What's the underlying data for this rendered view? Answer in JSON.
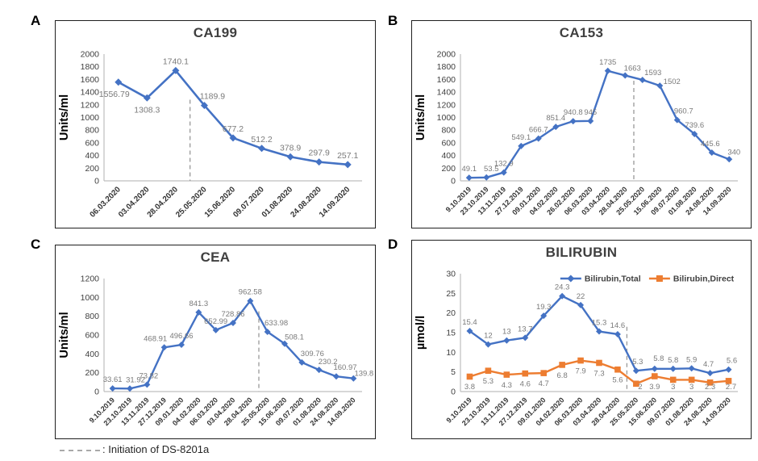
{
  "figure": {
    "panel_letters": [
      "A",
      "B",
      "C",
      "D"
    ],
    "caption": {
      "label": ": Initiation of DS-8201a"
    },
    "colors": {
      "series_blue": "#4472C4",
      "series_orange": "#ED7D31",
      "data_label": "#7a7a7a",
      "dashed_line": "#999999",
      "axis_line": "#bfbfbf",
      "tick_text": "#404040",
      "date_text": "#333333",
      "title_text": "#3f3f3f"
    }
  },
  "chart_data": [
    {
      "panel": "A",
      "type": "line",
      "title": "CA199",
      "ylabel": "Units/ml",
      "ylim": [
        0,
        2000
      ],
      "ytick_step": 200,
      "grid": false,
      "categories": [
        "06.03.2020",
        "03.04.2020",
        "28.04.2020",
        "25.05.2020",
        "15.06.2020",
        "09.07.2020",
        "01.08.2020",
        "24.08.2020",
        "14.09.2020"
      ],
      "series": [
        {
          "name": "CA199",
          "color": "#4472C4",
          "marker": "diamond",
          "values": [
            1556.79,
            1308.3,
            1740.1,
            1189.9,
            677.2,
            512.2,
            378.9,
            297.9,
            257.1
          ],
          "labels": [
            "1556.79",
            "1308.3",
            "1740.1",
            "1189.9",
            "677.2",
            "512.2",
            "378.9",
            "297.9",
            "257.1"
          ],
          "label_side": "above",
          "label_side_overrides": {
            "0": "below",
            "1": "below"
          },
          "label_dx": {
            "0": -5,
            "3": 10
          },
          "label_dy": {
            "0": 2,
            "1": 2
          }
        }
      ],
      "dashed_line": {
        "between_indices": [
          2,
          3
        ],
        "top_frac": 0.36
      },
      "legend": {
        "show": false
      }
    },
    {
      "panel": "B",
      "type": "line",
      "title": "CA153",
      "ylabel": "Units/ml",
      "ylim": [
        0,
        2000
      ],
      "ytick_step": 200,
      "grid": false,
      "categories": [
        "9.10.2019",
        "23.10.2019",
        "13.11.2019",
        "27.12.2019",
        "09.01.2020",
        "04.02.2020",
        "26.02.2020",
        "06.03.2020",
        "03.04.2020",
        "28.04.2020",
        "25.05.2020",
        "15.06.2020",
        "09.07.2020",
        "01.08.2020",
        "24.08.2020",
        "14.09.2020"
      ],
      "series": [
        {
          "name": "CA153",
          "color": "#4472C4",
          "marker": "diamond",
          "values": [
            49.1,
            53.5,
            132.9,
            549.1,
            666.7,
            851.4,
            940.8,
            945,
            1735,
            1663,
            1593,
            1502,
            960.7,
            739.6,
            445.6,
            340
          ],
          "labels": [
            "49.1",
            "53.5",
            "132.9",
            "549.1",
            "666.7",
            "851.4",
            "940.8",
            "945",
            "1735",
            "1663",
            "1593",
            "1502",
            "960.7",
            "739.6",
            "445.6",
            "340"
          ],
          "label_side": "above",
          "label_side_overrides": {},
          "label_dx": {
            "1": 6,
            "9": 9,
            "10": 13,
            "11": 15,
            "12": 8,
            "14": -2,
            "15": 6
          },
          "label_dy": {
            "9": 2,
            "10": 2,
            "11": 6,
            "15": 2
          }
        }
      ],
      "dashed_line": {
        "between_indices": [
          9,
          10
        ],
        "top_frac": 0.21
      },
      "legend": {
        "show": false
      }
    },
    {
      "panel": "C",
      "type": "line",
      "title": "CEA",
      "ylabel": "Units/ml",
      "ylim": [
        0,
        1200
      ],
      "ytick_step": 200,
      "grid": false,
      "categories": [
        "9.10.2019",
        "23.10.2019",
        "13.11.2019",
        "27.12.2019",
        "09.01.2020",
        "04.02.2020",
        "06.03.2020",
        "03.04.2020",
        "28.04.2020",
        "25.05.2020",
        "15.06.2020",
        "09.07.2020",
        "01.08.2020",
        "24.08.2020",
        "14.09.2020"
      ],
      "series": [
        {
          "name": "CEA",
          "color": "#4472C4",
          "marker": "diamond",
          "values": [
            33.61,
            31.92,
            73.82,
            468.91,
            496.66,
            841.3,
            652.99,
            728.86,
            962.58,
            633.98,
            508.1,
            309.76,
            230.2,
            160.97,
            139.8
          ],
          "labels": [
            "33.61",
            "31.92",
            "73.82",
            "468.91",
            "496.66",
            "841.3",
            "652.99",
            "728.86",
            "962.58",
            "633.98",
            "508.1",
            "309.76",
            "230.2",
            "160.97",
            "139.8"
          ],
          "label_side": "above",
          "label_side_overrides": {},
          "label_dx": {
            "1": 7,
            "2": 2,
            "3": -11,
            "9": 11,
            "10": 12,
            "11": 13,
            "12": 11,
            "13": 11,
            "14": 13
          },
          "label_dy": {
            "10": 3,
            "12": 1,
            "14": 5
          }
        }
      ],
      "dashed_line": {
        "between_indices": [
          8,
          9
        ],
        "top_frac": 0.29
      },
      "legend": {
        "show": false
      }
    },
    {
      "panel": "D",
      "type": "line",
      "title": "BILIRUBIN",
      "ylabel": "µmol/l",
      "ylim": [
        0,
        30
      ],
      "ytick_step": 5,
      "grid": false,
      "categories": [
        "9.10.2019",
        "23.10.2019",
        "13.11.2019",
        "27.12.2019",
        "09.01.2020",
        "04.02.2020",
        "06.03.2020",
        "03.04.2020",
        "28.04.2020",
        "25.05.2020",
        "15.06.2020",
        "09.07.2020",
        "01.08.2020",
        "24.08.2020",
        "14.09.2020"
      ],
      "series": [
        {
          "name": "Bilirubin,Total",
          "color": "#4472C4",
          "marker": "diamond",
          "values": [
            15.4,
            12,
            13,
            13.7,
            19.3,
            24.3,
            22,
            15.3,
            14.6,
            5.3,
            5.8,
            5.8,
            5.9,
            4.7,
            5.6
          ],
          "labels": [
            "15.4",
            "12",
            "13",
            "13.7",
            "19.3",
            "24.3",
            "22",
            "15.3",
            "14.6",
            "5.3",
            "5.8",
            "5.8",
            "5.9",
            "4.7",
            "5.6"
          ],
          "label_side": "above",
          "label_side_overrides": {},
          "label_dx": {
            "9": 2,
            "10": 5,
            "13": -2,
            "14": 4
          },
          "label_dy": {
            "10": -2
          }
        },
        {
          "name": "Bilirubin,Direct",
          "color": "#ED7D31",
          "marker": "square",
          "values": [
            3.8,
            5.3,
            4.3,
            4.6,
            4.7,
            6.8,
            7.9,
            7.3,
            5.6,
            2,
            3.9,
            3,
            3,
            2.3,
            2.7
          ],
          "labels": [
            "3.8",
            "5.3",
            "4.3",
            "4.6",
            "4.7",
            "6.8",
            "7.9",
            "7.3",
            "5.6",
            "2",
            "3.9",
            "3",
            "3",
            "2.3",
            "2.7"
          ],
          "label_side": "below",
          "label_side_overrides": {},
          "label_dx": {
            "9": 5,
            "14": 3
          },
          "label_dy": {}
        }
      ],
      "dashed_line": {
        "between_indices": [
          8,
          9
        ],
        "top_frac": 0.45
      },
      "legend": {
        "show": true,
        "position": "top-right"
      }
    }
  ]
}
